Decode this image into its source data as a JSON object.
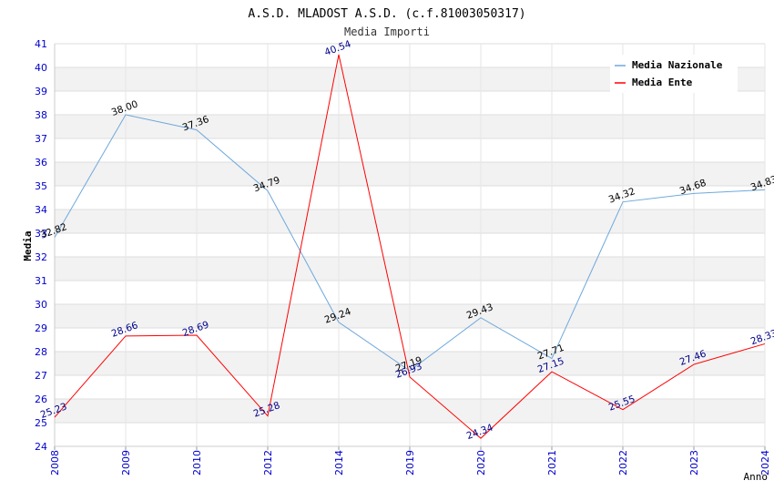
{
  "chart_data": {
    "type": "line",
    "title": "A.S.D. MLADOST A.S.D. (c.f.81003050317)",
    "subtitle": "Media Importi",
    "xlabel": "Anno",
    "ylabel": "Media",
    "categories": [
      "2008",
      "2009",
      "2010",
      "2012",
      "2014",
      "2019",
      "2020",
      "2021",
      "2022",
      "2023",
      "2024"
    ],
    "ylim": [
      24,
      41
    ],
    "yticks": [
      "24",
      "25",
      "26",
      "27",
      "28",
      "29",
      "30",
      "31",
      "32",
      "33",
      "34",
      "35",
      "36",
      "37",
      "38",
      "39",
      "40",
      "41"
    ],
    "legend_position": "top-right",
    "series": [
      {
        "name": "Media Nazionale",
        "color": "#6fa8dc",
        "label_color": "#000000",
        "values": [
          32.82,
          38.0,
          37.36,
          34.79,
          29.24,
          27.19,
          29.43,
          27.71,
          34.32,
          34.68,
          34.83
        ],
        "labels": [
          "32.82",
          "38.00",
          "37.36",
          "34.79",
          "29.24",
          "27.19",
          "29.43",
          "27.71",
          "34.32",
          "34.68",
          "34.83"
        ]
      },
      {
        "name": "Media Ente",
        "color": "#ff0000",
        "label_color": "#00008b",
        "values": [
          25.23,
          28.66,
          28.69,
          25.28,
          40.54,
          26.93,
          24.34,
          27.15,
          25.55,
          27.46,
          28.33
        ],
        "labels": [
          "25.23",
          "28.66",
          "28.69",
          "25.28",
          "40.54",
          "26.93",
          "24.34",
          "27.15",
          "25.55",
          "27.46",
          "28.33"
        ]
      }
    ]
  }
}
